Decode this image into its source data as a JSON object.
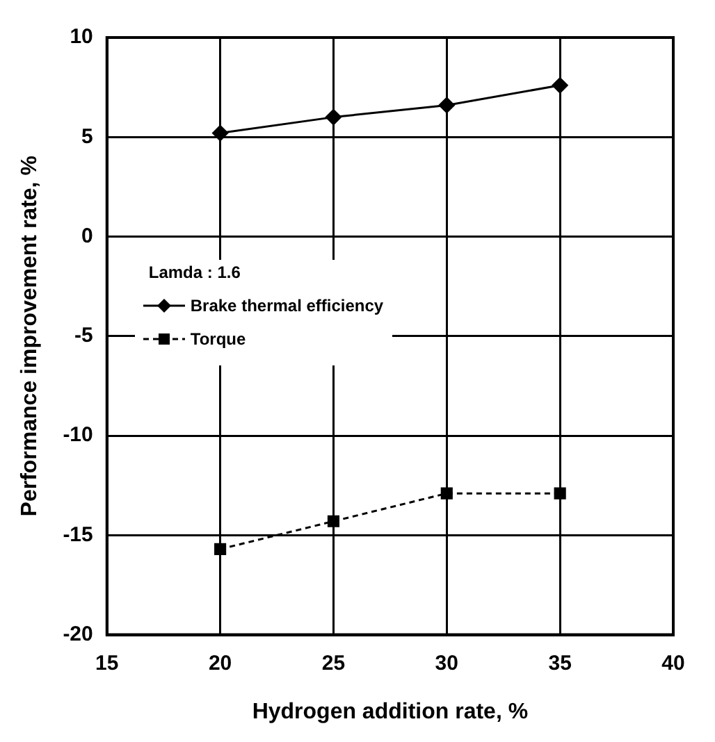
{
  "chart_data": {
    "type": "line",
    "xlabel": "Hydrogen addition rate, %",
    "ylabel": "Performance improvement rate, %",
    "legend_title": "Lamda : 1.6",
    "legend": "left",
    "x": [
      20,
      25,
      30,
      35
    ],
    "series": [
      {
        "name": "Brake thermal efficiency",
        "color": "#000000",
        "values": [
          5.2,
          6.0,
          6.6,
          7.6
        ],
        "marker": "diamond",
        "line_style": "solid"
      },
      {
        "name": "Torque",
        "color": "#000000",
        "values": [
          -15.7,
          -14.3,
          -12.9,
          -12.9
        ],
        "marker": "square",
        "line_style": "dashed"
      }
    ],
    "xlim": [
      15,
      40
    ],
    "xticks": [
      15,
      20,
      25,
      30,
      35,
      40
    ],
    "ylim": [
      -20,
      10
    ],
    "yticks": [
      -20,
      -15,
      -10,
      -5,
      0,
      5,
      10
    ],
    "grid": true
  }
}
